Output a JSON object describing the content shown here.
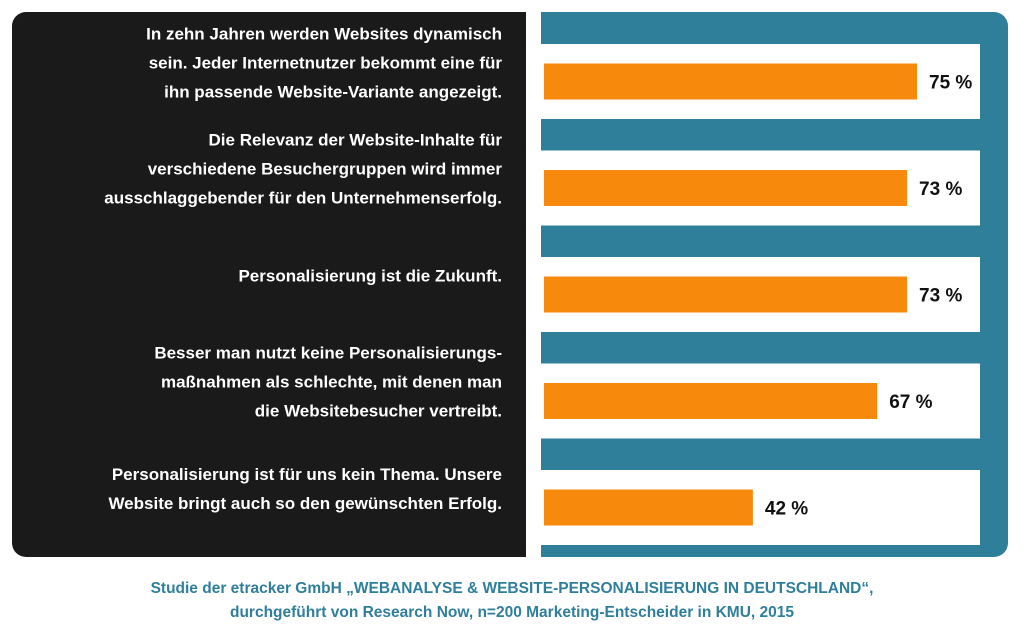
{
  "chart_data": {
    "type": "bar",
    "orientation": "horizontal",
    "categories": [
      "In zehn Jahren werden Websites dynamisch\nsein. Jeder Internetnutzer bekommt eine für\nihn passende Website-Variante angezeigt.",
      "Die Relevanz der Website-Inhalte für\nverschiedene Besuchergruppen wird immer\nausschlaggebender für den Unternehmenserfolg.",
      "Personalisierung ist die Zukunft.",
      "Besser man nutzt keine Personalisierungs-\nmaßnahmen als schlechte, mit denen man\ndie Websitebesucher vertreibt.",
      "Personalisierung ist für uns kein Thema. Unsere\nWebsite bringt auch so den gewünschten Erfolg."
    ],
    "values": [
      75,
      73,
      73,
      67,
      42
    ],
    "value_labels": [
      "75 %",
      "73 %",
      "73 %",
      "67 %",
      "42 %"
    ],
    "xlim": [
      0,
      100
    ],
    "unit": "%",
    "grid": false,
    "legend": "none"
  },
  "footnote": {
    "line1": "Studie der etracker GmbH „WEBANALYSE & WEBSITE-PERSONALISIERUNG IN DEUTSCHLAND“,",
    "line2": "durchgeführt von Research Now, n=200 Marketing-Entscheider in KMU, 2015"
  },
  "colors": {
    "label_panel": "#1a1a1a",
    "chart_frame": "#2f7f9b",
    "bar": "#f7890c",
    "row_background": "#ffffff",
    "footnote_text": "#2f7f9b"
  }
}
